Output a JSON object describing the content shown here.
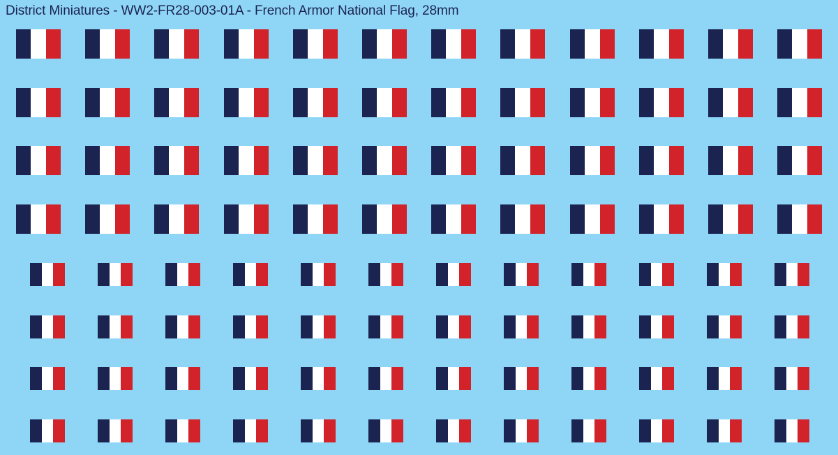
{
  "sheet": {
    "title": "District Miniatures - WW2-FR28-003-01A - French Armor National Flag, 28mm",
    "background_color": "#8fd6f6",
    "title_color": "#1b2350"
  },
  "flag": {
    "name": "French national flag (tricolore)",
    "bands": [
      {
        "name": "blue",
        "color": "#1b2350"
      },
      {
        "name": "white",
        "color": "#ffffff"
      },
      {
        "name": "red",
        "color": "#d2232a"
      }
    ]
  },
  "decal_groups": [
    {
      "name": "large",
      "rows": 4,
      "columns": 12,
      "count": 48
    },
    {
      "name": "small",
      "rows": 4,
      "columns": 12,
      "count": 48
    }
  ]
}
